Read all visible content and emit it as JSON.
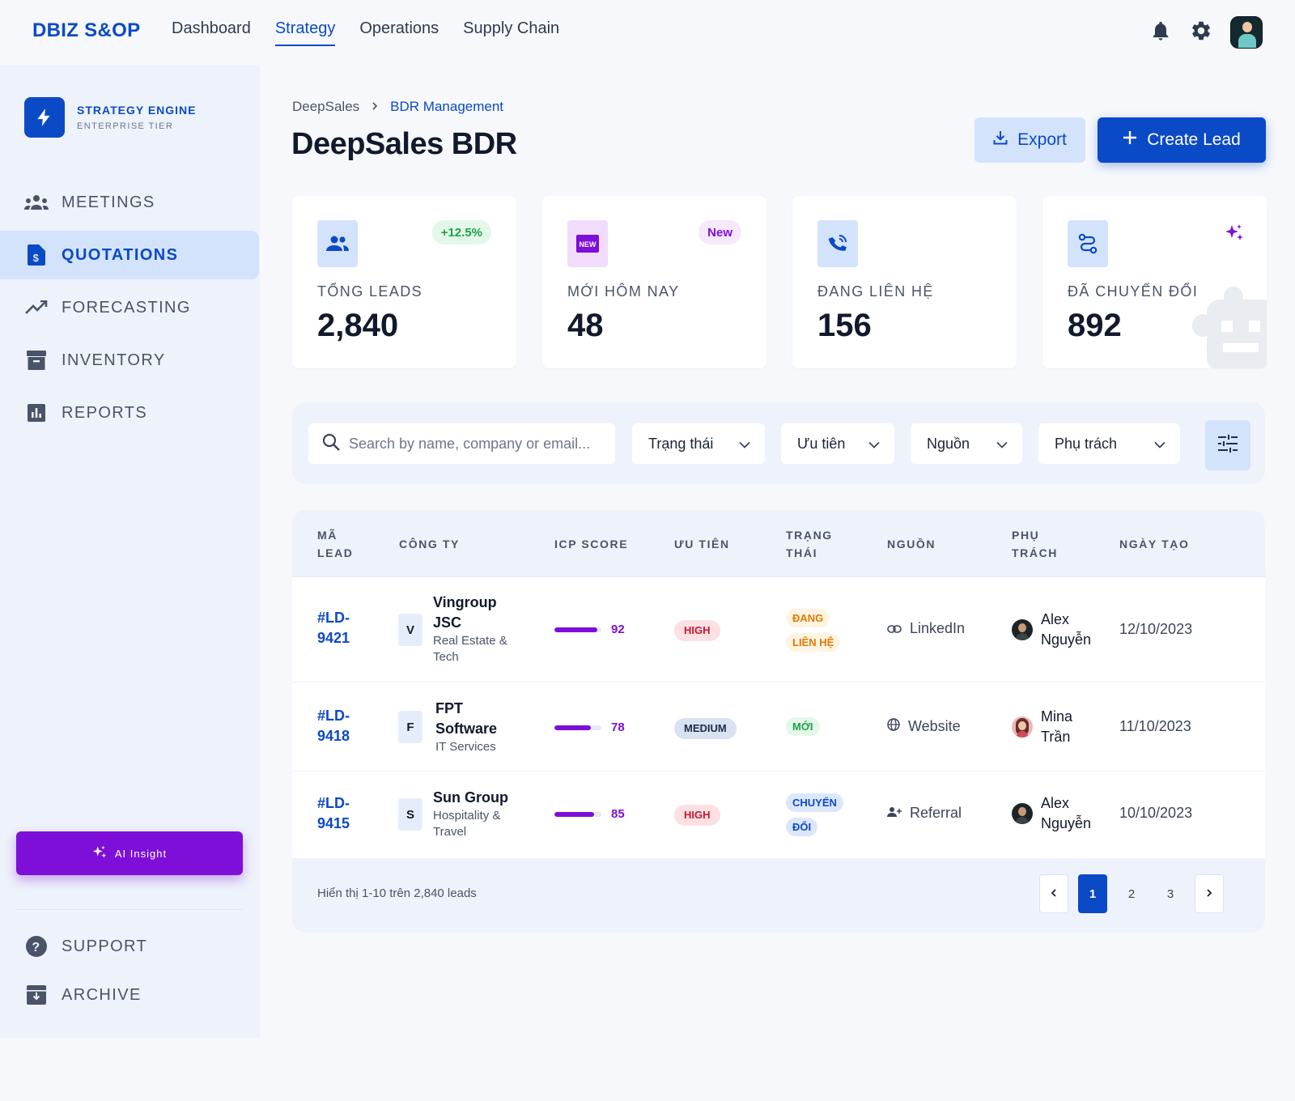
{
  "app": {
    "brand": "DBIZ S&OP"
  },
  "topnav": [
    {
      "label": "Dashboard",
      "active": false
    },
    {
      "label": "Strategy",
      "active": true
    },
    {
      "label": "Operations",
      "active": false
    },
    {
      "label": "Supply Chain",
      "active": false
    }
  ],
  "sidebar": {
    "engine_title": "STRATEGY ENGINE",
    "engine_subtitle": "ENTERPRISE TIER",
    "items": [
      {
        "label": "MEETINGS",
        "icon": "groups-icon",
        "active": false
      },
      {
        "label": "QUOTATIONS",
        "icon": "request-quote-icon",
        "active": true
      },
      {
        "label": "FORECASTING",
        "icon": "trending-up-icon",
        "active": false
      },
      {
        "label": "INVENTORY",
        "icon": "inventory-icon",
        "active": false
      },
      {
        "label": "REPORTS",
        "icon": "bar-chart-icon",
        "active": false
      }
    ],
    "ai_button": "AI Insight",
    "bottom_items": [
      {
        "label": "SUPPORT",
        "icon": "help-icon"
      },
      {
        "label": "ARCHIVE",
        "icon": "archive-icon"
      }
    ]
  },
  "breadcrumb": {
    "root": "DeepSales",
    "current": "BDR Management"
  },
  "page": {
    "title": "DeepSales BDR",
    "export_label": "Export",
    "create_label": "Create Lead"
  },
  "stats": [
    {
      "label": "TỔNG LEADS",
      "value": "2,840",
      "badge": "+12.5%",
      "icon": "group-icon"
    },
    {
      "label": "MỚI HÔM NAY",
      "value": "48",
      "badge": "New",
      "icon": "new-releases-icon"
    },
    {
      "label": "ĐANG LIÊN HỆ",
      "value": "156",
      "badge": "",
      "icon": "phone-in-talk-icon"
    },
    {
      "label": "ĐÃ CHUYỂN ĐỔI",
      "value": "892",
      "badge": "",
      "icon": "route-icon"
    }
  ],
  "filters": {
    "search_placeholder": "Search by name, company or email...",
    "status": "Trạng thái",
    "priority": "Ưu tiên",
    "source": "Nguồn",
    "owner": "Phụ trách"
  },
  "table": {
    "headers": {
      "id": [
        "MÃ",
        "LEAD"
      ],
      "company": "CÔNG TY",
      "icp": "ICP SCORE",
      "priority": "ƯU TIÊN",
      "status": [
        "TRẠNG",
        "THÁI"
      ],
      "source": "NGUỒN",
      "owner": [
        "PHỤ",
        "TRÁCH"
      ],
      "date": "NGÀY TẠO"
    },
    "rows": [
      {
        "id": [
          "#LD-",
          "9421"
        ],
        "initial": "V",
        "company": [
          "Vingroup",
          "JSC"
        ],
        "industry": [
          "Real Estate &",
          "Tech"
        ],
        "icp": 92,
        "priority": "HIGH",
        "status": [
          "ĐANG",
          "LIÊN HỆ"
        ],
        "source": "LinkedIn",
        "source_icon": "link-icon",
        "owner": [
          "Alex",
          "Nguyễn"
        ],
        "date": "12/10/2023"
      },
      {
        "id": [
          "#LD-",
          "9418"
        ],
        "initial": "F",
        "company": [
          "FPT",
          "Software"
        ],
        "industry": [
          "IT Services"
        ],
        "icp": 78,
        "priority": "MEDIUM",
        "status": [
          "MỚI"
        ],
        "source": "Website",
        "source_icon": "globe-icon",
        "owner": [
          "Mina",
          "Trần"
        ],
        "date": "11/10/2023"
      },
      {
        "id": [
          "#LD-",
          "9415"
        ],
        "initial": "S",
        "company": [
          "Sun Group"
        ],
        "industry": [
          "Hospitality &",
          "Travel"
        ],
        "icp": 85,
        "priority": "HIGH",
        "status": [
          "CHUYỂN",
          "ĐỔI"
        ],
        "source": "Referral",
        "source_icon": "person-add-icon",
        "owner": [
          "Alex",
          "Nguyễn"
        ],
        "date": "10/10/2023"
      }
    ],
    "footer_text": "Hiển thị 1-10 trên 2,840 leads",
    "pages": [
      "1",
      "2",
      "3"
    ],
    "current_page": "1"
  },
  "colors": {
    "primary": "#0b4ac7",
    "accent_purple": "#7d0fd8",
    "sidebar_bg": "#eef2fb",
    "high": "#c5182f",
    "status_orange": "#e07a00",
    "status_green": "#1ea04a"
  }
}
